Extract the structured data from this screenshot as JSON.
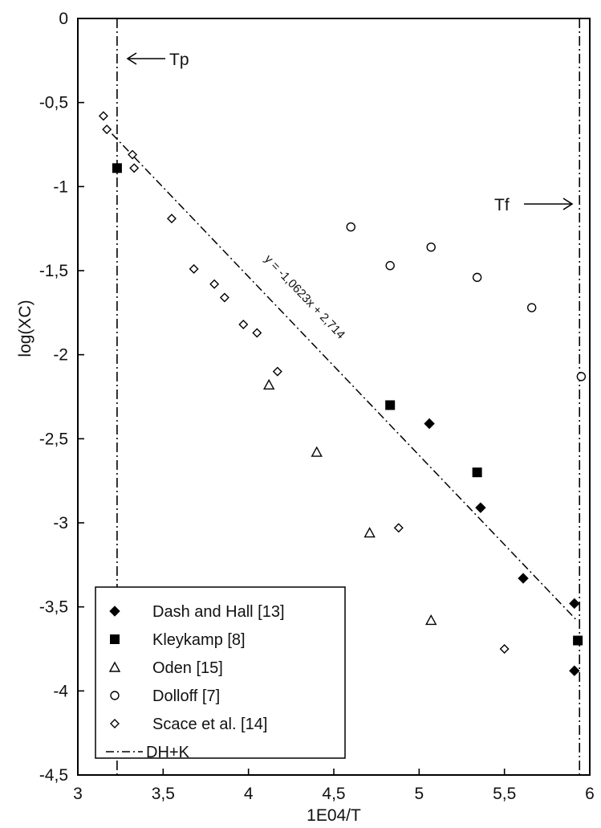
{
  "chart_data": {
    "type": "scatter",
    "xlabel": "1E04/T",
    "ylabel": "log(XC)",
    "xlim": [
      3,
      6
    ],
    "ylim": [
      -4.5,
      0
    ],
    "x_ticks": [
      3,
      3.5,
      4,
      4.5,
      5,
      5.5,
      6
    ],
    "x_tick_labels": [
      "3",
      "3,5",
      "4",
      "4,5",
      "5",
      "5,5",
      "6"
    ],
    "y_ticks": [
      0,
      -0.5,
      -1,
      -1.5,
      -2,
      -2.5,
      -3,
      -3.5,
      -4,
      -4.5
    ],
    "y_tick_labels": [
      "0",
      "-0,5",
      "-1",
      "-1,5",
      "-2",
      "-2,5",
      "-3",
      "-3,5",
      "-4",
      "-4,5"
    ],
    "grid": false,
    "legend_position": "bottom-left",
    "series": [
      {
        "name": "Dash and Hall [13]",
        "marker": "diamond-filled",
        "points": [
          [
            5.06,
            -2.41
          ],
          [
            5.36,
            -2.91
          ],
          [
            5.61,
            -3.33
          ],
          [
            5.91,
            -3.48
          ],
          [
            5.91,
            -3.88
          ]
        ]
      },
      {
        "name": "Kleykamp [8]",
        "marker": "square-filled",
        "points": [
          [
            3.23,
            -0.89
          ],
          [
            4.83,
            -2.3
          ],
          [
            5.34,
            -2.7
          ],
          [
            5.93,
            -3.7
          ]
        ]
      },
      {
        "name": "Oden [15]",
        "marker": "triangle-open",
        "points": [
          [
            4.12,
            -2.18
          ],
          [
            4.4,
            -2.58
          ],
          [
            4.71,
            -3.06
          ],
          [
            5.07,
            -3.58
          ]
        ]
      },
      {
        "name": "Dolloff [7]",
        "marker": "circle-open",
        "points": [
          [
            4.6,
            -1.24
          ],
          [
            4.83,
            -1.47
          ],
          [
            5.07,
            -1.36
          ],
          [
            5.34,
            -1.54
          ],
          [
            5.66,
            -1.72
          ],
          [
            5.95,
            -2.13
          ]
        ]
      },
      {
        "name": "Scace et al. [14]",
        "marker": "diamond-open",
        "points": [
          [
            3.15,
            -0.58
          ],
          [
            3.17,
            -0.66
          ],
          [
            3.32,
            -0.81
          ],
          [
            3.33,
            -0.89
          ],
          [
            3.55,
            -1.19
          ],
          [
            3.68,
            -1.49
          ],
          [
            3.8,
            -1.58
          ],
          [
            3.86,
            -1.66
          ],
          [
            3.97,
            -1.82
          ],
          [
            4.05,
            -1.87
          ],
          [
            4.17,
            -2.1
          ],
          [
            4.88,
            -3.03
          ],
          [
            5.5,
            -3.75
          ]
        ]
      },
      {
        "name": "DH+K",
        "marker": "dash-dot-line",
        "line": [
          [
            3.2,
            -0.686
          ],
          [
            5.92,
            -3.576
          ]
        ]
      }
    ],
    "vertical_lines": [
      {
        "label": "Tp",
        "x": 3.23
      },
      {
        "label": "Tf",
        "x": 5.94
      }
    ],
    "annotations": {
      "equation": "y = -1,0623x + 2,714",
      "tp_label": "Tp",
      "tf_label": "Tf"
    }
  }
}
